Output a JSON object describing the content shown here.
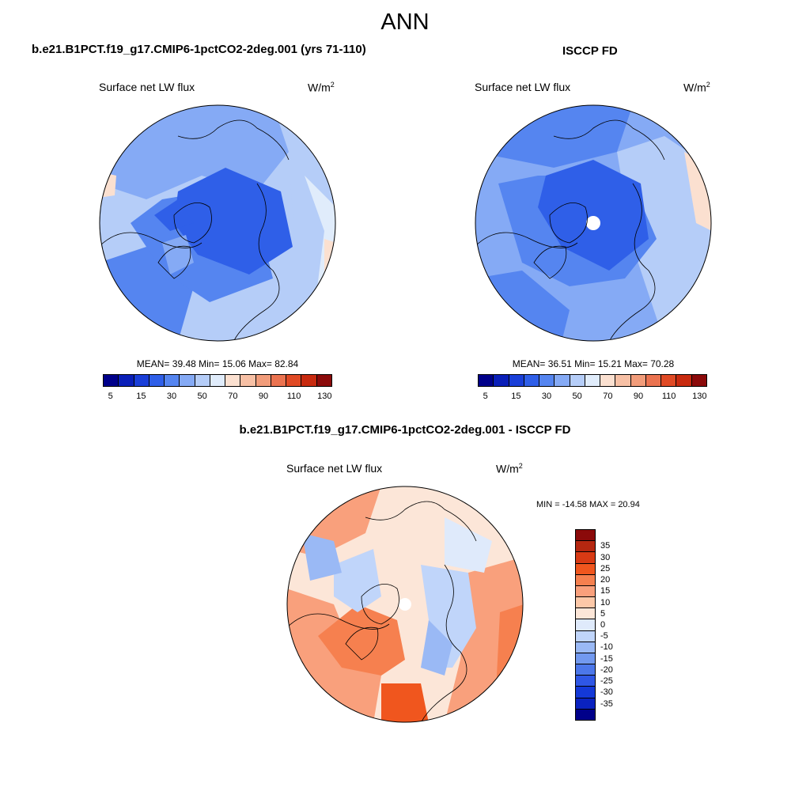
{
  "page_title": "ANN",
  "panel_model": {
    "title": "b.e21.B1PCT.f19_g17.CMIP6-1pctCO2-2deg.001 (yrs 71-110)",
    "variable": "Surface net LW flux",
    "units_base": "W/m",
    "units_exp": "2",
    "stats": "MEAN=  39.48  Min=  15.06  Max=  82.84"
  },
  "panel_obs": {
    "title": "ISCCP FD",
    "variable": "Surface net LW flux",
    "units_base": "W/m",
    "units_exp": "2",
    "stats": "MEAN=  36.51  Min=  15.21  Max=  70.28"
  },
  "panel_diff": {
    "title": "b.e21.B1PCT.f19_g17.CMIP6-1pctCO2-2deg.001 - ISCCP FD",
    "variable": "Surface net LW flux",
    "units_base": "W/m",
    "units_exp": "2",
    "stats": "MIN = -14.58 MAX =  20.94"
  },
  "abs_colorbar": {
    "colors": [
      "#00008a",
      "#0a1fb8",
      "#1a3fd8",
      "#2f5fe8",
      "#5585f0",
      "#85aaf5",
      "#b5cdf8",
      "#e0ecfb",
      "#fbe0d0",
      "#f7c0a5",
      "#f19c7a",
      "#eb7350",
      "#e04a25",
      "#c82a0f",
      "#8b0a0a"
    ],
    "ticks": [
      "5",
      "15",
      "30",
      "50",
      "70",
      "90",
      "110",
      "130"
    ]
  },
  "diff_colorbar": {
    "colors": [
      "#8b0a0a",
      "#b52710",
      "#d83a14",
      "#f0561e",
      "#f6804f",
      "#f9a07c",
      "#fcc8a8",
      "#fce6d8",
      "#dfeafb",
      "#c0d5fa",
      "#9ab9f5",
      "#7299ef",
      "#4c77ea",
      "#2f57e6",
      "#1439d8",
      "#0a22c0",
      "#00008a"
    ],
    "ticks": [
      "35",
      "30",
      "25",
      "20",
      "15",
      "10",
      "5",
      "0",
      "-5",
      "-10",
      "-15",
      "-20",
      "-25",
      "-30",
      "-35"
    ]
  }
}
